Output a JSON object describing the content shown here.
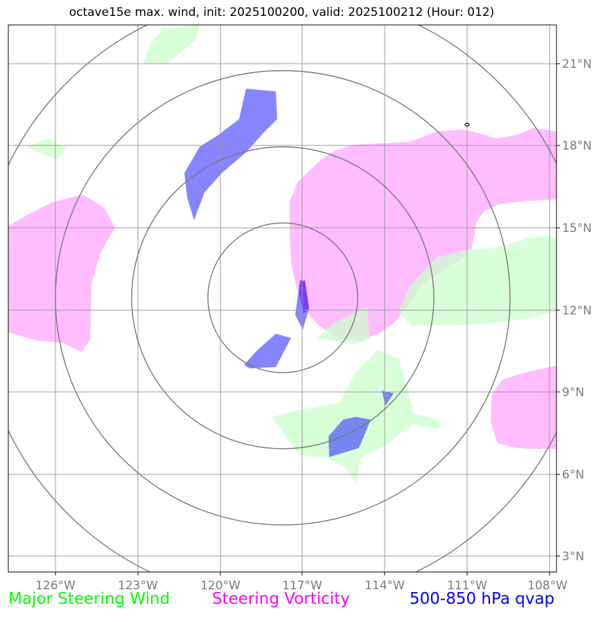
{
  "title": "octave15e max. wind, init: 2025100200, valid: 2025100212 (Hour: 012)",
  "map": {
    "lon_labels": [
      "126°W",
      "123°W",
      "120°W",
      "117°W",
      "114°W",
      "111°W",
      "108°W"
    ],
    "lat_labels": [
      "21°N",
      "18°N",
      "15°N",
      "12°N",
      "9°N",
      "6°N",
      "3°N"
    ],
    "colors": {
      "wind": "#ccffcc",
      "vorticity": "#ff99ff",
      "qvap": "#3333ff",
      "grid": "#999999",
      "range_rings": "#777777"
    }
  },
  "legend": {
    "wind": "Major Steering Wind",
    "vorticity": "Steering Vorticity",
    "qvap": "500-850 hPa qvap"
  }
}
